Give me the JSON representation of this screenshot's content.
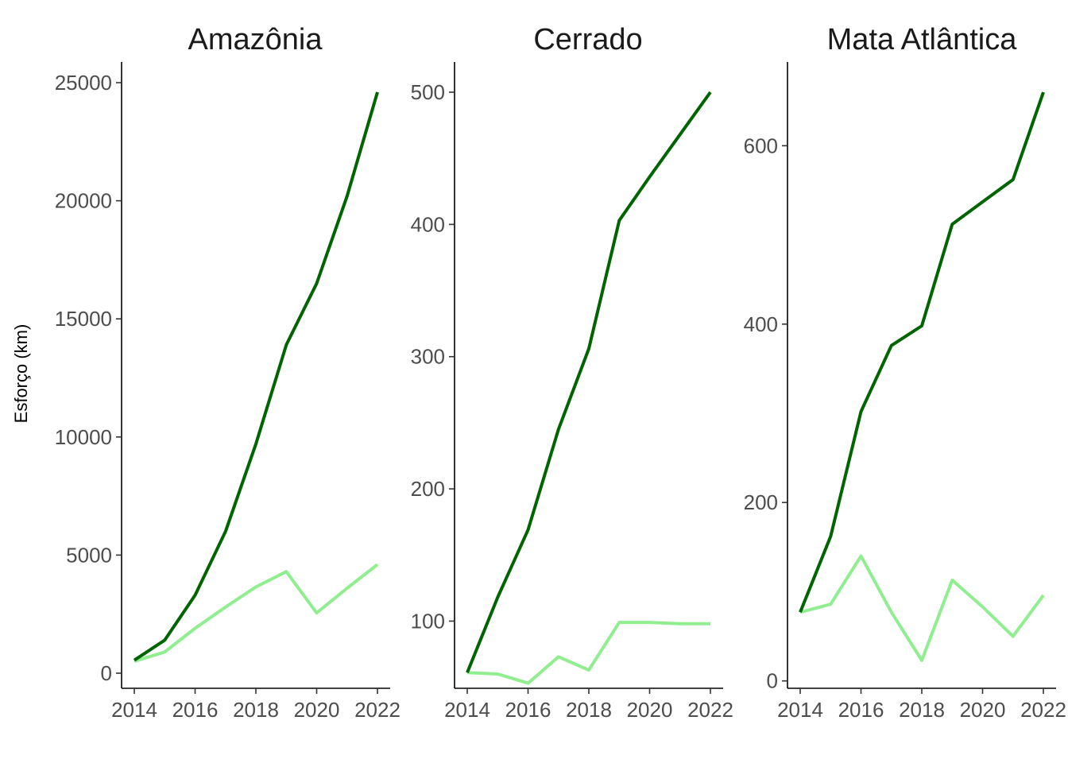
{
  "figure": {
    "ylabel": "Esforço (km)"
  },
  "colors": {
    "dark": "#006400",
    "light": "#90EE90"
  },
  "chart_data": [
    {
      "type": "line",
      "title": "Amazônia",
      "xlabel": "",
      "ylabel": "Esforço (km)",
      "xlim": [
        2014,
        2022
      ],
      "ylim": [
        0,
        25000
      ],
      "xticks": [
        2014,
        2016,
        2018,
        2020,
        2022
      ],
      "yticks": [
        0,
        5000,
        10000,
        15000,
        20000,
        25000
      ],
      "grid": false,
      "series": [
        {
          "color": "#006400",
          "x": [
            2014,
            2015,
            2016,
            2017,
            2018,
            2019,
            2020,
            2021,
            2022
          ],
          "values": [
            550,
            1400,
            3300,
            6000,
            9700,
            13900,
            16500,
            20200,
            24600
          ]
        },
        {
          "color": "#90EE90",
          "x": [
            2014,
            2015,
            2016,
            2017,
            2018,
            2019,
            2020,
            2021,
            2022
          ],
          "values": [
            500,
            900,
            1900,
            2800,
            3650,
            4300,
            2550,
            3600,
            4600
          ]
        }
      ]
    },
    {
      "type": "line",
      "title": "Cerrado",
      "xlabel": "",
      "ylabel": "",
      "xlim": [
        2014,
        2022
      ],
      "ylim": [
        60,
        500
      ],
      "xticks": [
        2014,
        2016,
        2018,
        2020,
        2022
      ],
      "yticks": [
        100,
        200,
        300,
        400,
        500
      ],
      "grid": false,
      "series": [
        {
          "color": "#006400",
          "x": [
            2014,
            2015,
            2016,
            2017,
            2018,
            2019,
            2020,
            2021,
            2022
          ],
          "values": [
            61,
            118,
            169,
            245,
            306,
            403,
            436,
            468,
            500
          ]
        },
        {
          "color": "#90EE90",
          "x": [
            2014,
            2015,
            2016,
            2017,
            2018,
            2019,
            2020,
            2021,
            2022
          ],
          "values": [
            61,
            60,
            53,
            73,
            63,
            99,
            99,
            98,
            98
          ]
        }
      ]
    },
    {
      "type": "line",
      "title": "Mata Atlântica",
      "xlabel": "",
      "ylabel": "",
      "xlim": [
        2014,
        2022
      ],
      "ylim": [
        22,
        660
      ],
      "xticks": [
        2014,
        2016,
        2018,
        2020,
        2022
      ],
      "yticks": [
        0,
        200,
        400,
        600
      ],
      "grid": false,
      "series": [
        {
          "color": "#006400",
          "x": [
            2014,
            2015,
            2016,
            2017,
            2018,
            2019,
            2020,
            2021,
            2022
          ],
          "values": [
            77,
            162,
            302,
            376,
            398,
            512,
            537,
            562,
            660
          ]
        },
        {
          "color": "#90EE90",
          "x": [
            2014,
            2015,
            2016,
            2017,
            2018,
            2019,
            2020,
            2021,
            2022
          ],
          "values": [
            77,
            86,
            140,
            77,
            23,
            113,
            83,
            50,
            96
          ]
        }
      ]
    }
  ]
}
